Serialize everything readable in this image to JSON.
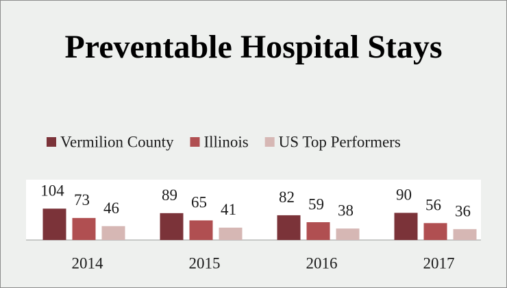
{
  "chart_data": {
    "type": "bar",
    "title": "Preventable Hospital Stays",
    "categories": [
      "2014",
      "2015",
      "2016",
      "2017"
    ],
    "series": [
      {
        "name": "Vermilion County",
        "color": "#7b3339",
        "values": [
          104,
          89,
          82,
          90
        ]
      },
      {
        "name": "Illinois",
        "color": "#b04f51",
        "values": [
          73,
          65,
          59,
          56
        ]
      },
      {
        "name": "US Top Performers",
        "color": "#d6b7b4",
        "values": [
          46,
          41,
          38,
          36
        ]
      }
    ],
    "ylim": [
      0,
      200
    ],
    "legend": "top"
  }
}
